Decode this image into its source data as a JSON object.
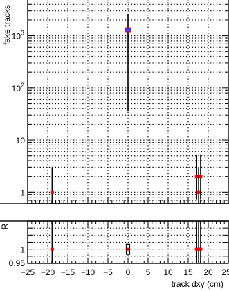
{
  "chart_data": [
    {
      "panel": "main",
      "type": "scatter",
      "xlabel": "",
      "ylabel": "fake tracks",
      "yscale": "log",
      "xlim": [
        -25,
        25
      ],
      "ylim": [
        0.6,
        5000
      ],
      "grid": true,
      "y_ticks": [
        {
          "value": 1,
          "base": "1",
          "exp": ""
        },
        {
          "value": 10,
          "base": "10",
          "exp": ""
        },
        {
          "value": 100,
          "base": "10",
          "exp": "2"
        },
        {
          "value": 1000,
          "base": "10",
          "exp": "3"
        }
      ],
      "series": [
        {
          "color_main": "#3a3aff",
          "color_ratio": "#ff0000",
          "points": [
            {
              "x": -18.9,
              "y": 1,
              "yerr_low": 0.41,
              "yerr_high": 2.0
            },
            {
              "x": 0.0,
              "y": 1300,
              "yerr_low": 1264,
              "yerr_high": 1336
            },
            {
              "x": 17.1,
              "y": 2,
              "yerr_low": 1.27,
              "yerr_high": 3.31
            },
            {
              "x": 17.6,
              "y": 1,
              "yerr_low": 0.41,
              "yerr_high": 2.0
            },
            {
              "x": 18.1,
              "y": 2,
              "yerr_low": 1.27,
              "yerr_high": 3.31
            }
          ]
        }
      ]
    },
    {
      "panel": "ratio",
      "type": "scatter",
      "xlabel": "track dxy (cm)",
      "ylabel": "R",
      "xlim": [
        -25,
        25
      ],
      "ylim": [
        0.95,
        1.1
      ],
      "grid": true,
      "x_ticks": [
        "−25",
        "−20",
        "−15",
        "−10",
        "−5",
        "0",
        "5",
        "10",
        "15",
        "20",
        "25"
      ],
      "x_tick_values": [
        -25,
        -20,
        -15,
        -10,
        -5,
        0,
        5,
        10,
        15,
        20,
        25
      ],
      "y_ticks": [
        {
          "value": 0.95,
          "label": "0.95"
        },
        {
          "value": 1.0,
          "label": "1"
        }
      ],
      "points": [
        {
          "x": -18.9,
          "y": 1.0,
          "err": 0.12
        },
        {
          "x": 0.0,
          "y": 1.0,
          "err": 0.018
        },
        {
          "x": 17.1,
          "y": 1.0,
          "err": 0.12
        },
        {
          "x": 17.6,
          "y": 1.0,
          "err": 0.12
        },
        {
          "x": 18.1,
          "y": 1.0,
          "err": 0.12
        }
      ]
    }
  ]
}
